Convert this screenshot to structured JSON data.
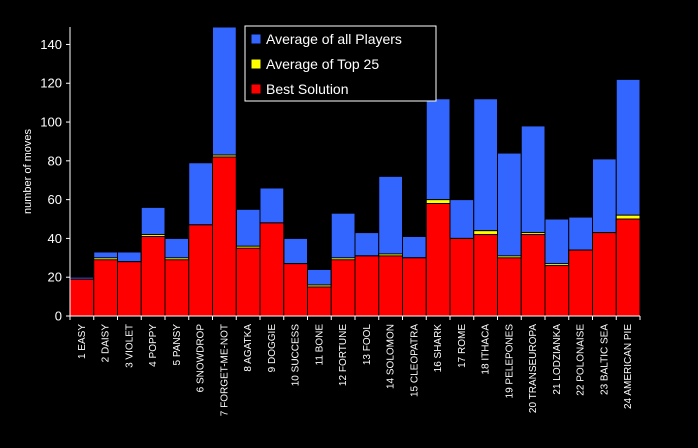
{
  "chart_data": {
    "type": "bar",
    "stacked": false,
    "overlaid": true,
    "ylabel": "number of moves",
    "ylim": [
      0,
      149
    ],
    "yticks": [
      0,
      20,
      40,
      60,
      80,
      100,
      120,
      140
    ],
    "grid": false,
    "legend_position": "top-center",
    "background": "#000000",
    "categories": [
      "1 EASY",
      "2 DAISY",
      "3 VIOLET",
      "4 POPPY",
      "5 PANSY",
      "6 SNOWDROP",
      "7 FORGET-ME-NOT",
      "8 AGATKA",
      "9 DOGGIE",
      "10 SUCCESS",
      "11 BONE",
      "12 FORTUNE",
      "13 FOOL",
      "14 SOLOMON",
      "15 CLEOPATRA",
      "16 SHARK",
      "17 ROME",
      "18 ITHACA",
      "19 PELEPONES",
      "20 TRANSEUROPA",
      "21 LODZIANKA",
      "22 POLONAISE",
      "23 BALTIC SEA",
      "24 AMERICAN PIE"
    ],
    "series": [
      {
        "name": "Average of all Players",
        "color": "#3366ff",
        "values": [
          20,
          33,
          33,
          56,
          40,
          79,
          149,
          55,
          66,
          40,
          24,
          53,
          43,
          72,
          41,
          112,
          60,
          112,
          84,
          98,
          50,
          51,
          81,
          122
        ]
      },
      {
        "name": "Average of Top 25",
        "color": "#ffff00",
        "values": [
          19,
          30,
          28,
          42,
          30,
          47,
          83,
          36,
          48,
          27,
          16,
          30,
          31,
          32,
          30,
          60,
          40,
          44,
          31,
          43,
          27,
          34,
          43,
          52
        ]
      },
      {
        "name": "Best Solution",
        "color": "#ff0000",
        "values": [
          19,
          29,
          28,
          41,
          29,
          47,
          82,
          35,
          48,
          27,
          15,
          29,
          31,
          31,
          30,
          58,
          40,
          42,
          30,
          42,
          26,
          34,
          43,
          50
        ]
      }
    ]
  }
}
